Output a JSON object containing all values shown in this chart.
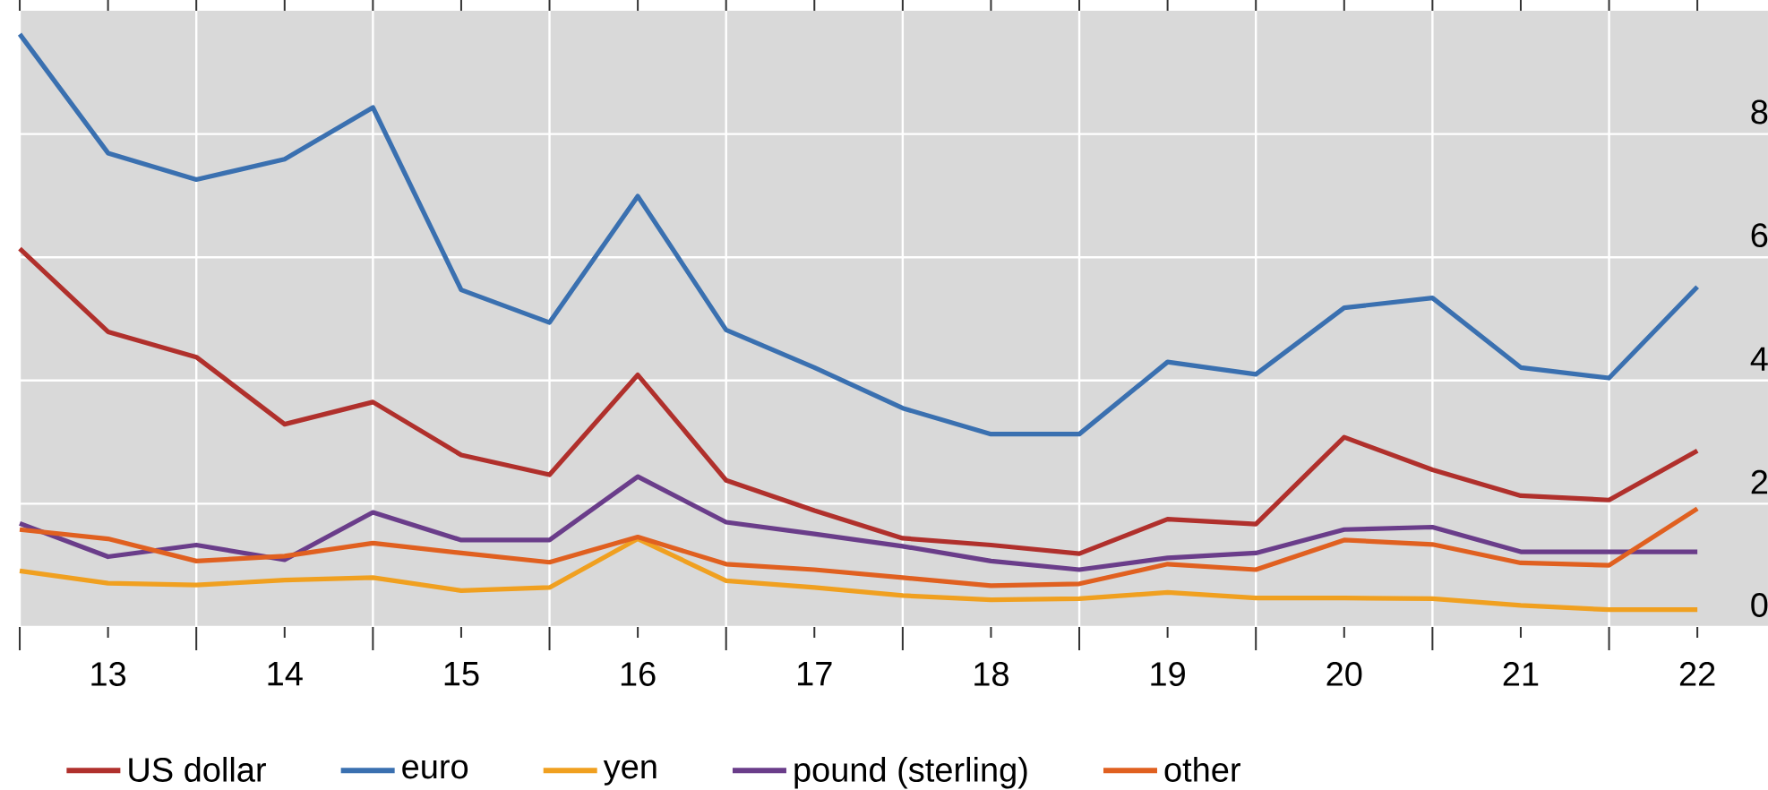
{
  "chart_data": {
    "type": "line",
    "x": [
      12.5,
      13,
      13.5,
      14,
      14.5,
      15,
      15.5,
      16,
      16.5,
      17,
      17.5,
      18,
      18.5,
      19,
      19.5,
      20,
      20.5,
      21,
      21.5,
      22
    ],
    "series": [
      {
        "name": "US dollar",
        "color": "#b0302c",
        "values": [
          6.14,
          4.79,
          4.38,
          3.29,
          3.65,
          2.79,
          2.47,
          4.09,
          2.38,
          1.89,
          1.44,
          1.33,
          1.19,
          1.75,
          1.67,
          3.08,
          2.55,
          2.13,
          2.06,
          2.86
        ]
      },
      {
        "name": "euro",
        "color": "#3a70b0",
        "values": [
          9.62,
          7.69,
          7.26,
          7.59,
          8.43,
          5.47,
          4.94,
          6.99,
          4.82,
          4.21,
          3.55,
          3.13,
          3.13,
          4.3,
          4.1,
          5.18,
          5.34,
          4.21,
          4.04,
          5.52
        ]
      },
      {
        "name": "yen",
        "color": "#f0a020",
        "values": [
          0.91,
          0.71,
          0.68,
          0.76,
          0.8,
          0.59,
          0.64,
          1.43,
          0.75,
          0.64,
          0.51,
          0.44,
          0.46,
          0.56,
          0.47,
          0.47,
          0.46,
          0.35,
          0.28,
          0.28
        ]
      },
      {
        "name": "pound (sterling)",
        "color": "#6a3d8a",
        "values": [
          1.68,
          1.14,
          1.33,
          1.09,
          1.86,
          1.41,
          1.41,
          2.44,
          1.7,
          1.51,
          1.31,
          1.07,
          0.93,
          1.12,
          1.2,
          1.58,
          1.62,
          1.22,
          1.22,
          1.22
        ]
      },
      {
        "name": "other",
        "color": "#e06020",
        "values": [
          1.58,
          1.43,
          1.07,
          1.15,
          1.36,
          1.2,
          1.05,
          1.46,
          1.02,
          0.93,
          0.8,
          0.67,
          0.7,
          1.02,
          0.93,
          1.41,
          1.34,
          1.04,
          1.0,
          1.92
        ]
      }
    ],
    "xlim": [
      12.5,
      22.4
    ],
    "xticks": [
      {
        "value": 12.5,
        "label": null
      },
      13,
      {
        "value": 13.5,
        "label": null
      },
      14,
      {
        "value": 14.5,
        "label": null
      },
      15,
      {
        "value": 15.5,
        "label": null
      },
      16,
      {
        "value": 16.5,
        "label": null
      },
      17,
      {
        "value": 17.5,
        "label": null
      },
      18,
      {
        "value": 18.5,
        "label": null
      },
      19,
      {
        "value": 19.5,
        "label": null
      },
      20,
      {
        "value": 20.5,
        "label": null
      },
      21,
      {
        "value": 21.5,
        "label": null
      },
      22
    ],
    "ylim": [
      0,
      10
    ],
    "yticks": [
      0,
      2,
      4,
      6,
      8
    ],
    "grid": true,
    "legend": "bottom",
    "marker": "none",
    "line_style": "solid"
  }
}
